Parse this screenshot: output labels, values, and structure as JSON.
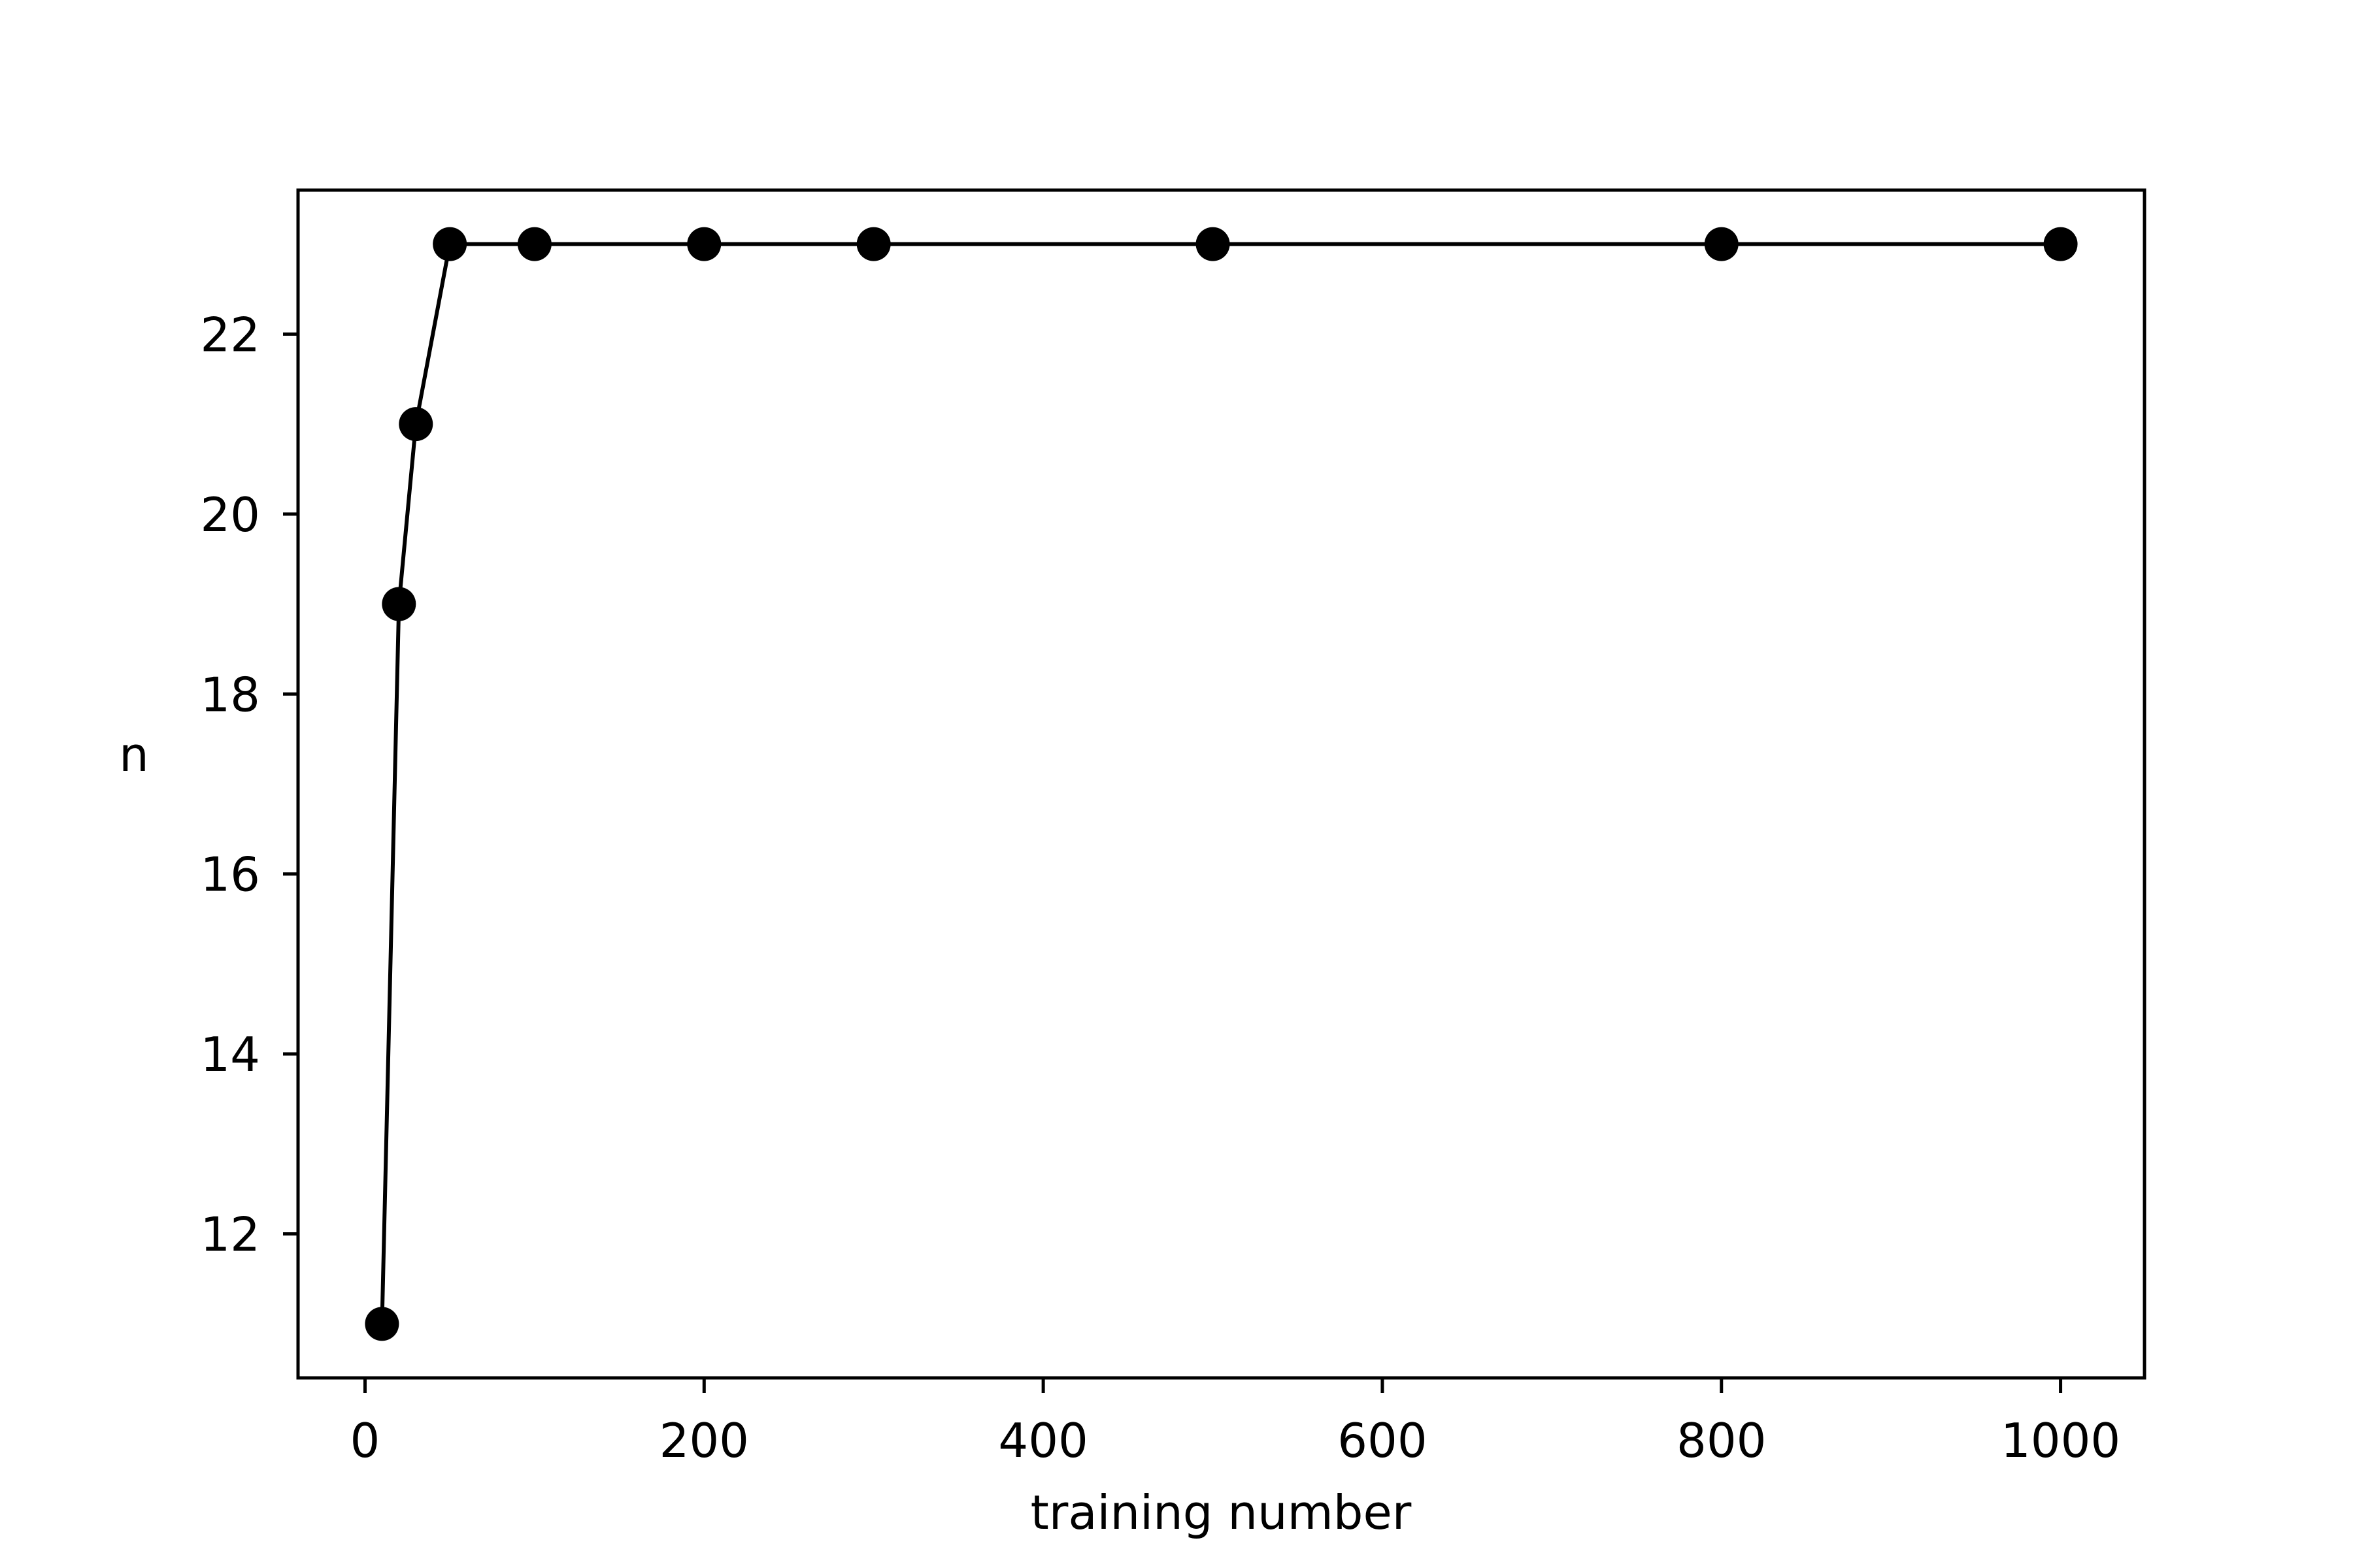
{
  "chart_data": {
    "type": "line",
    "x_label": "training number",
    "y_label": "n",
    "x": [
      10,
      20,
      30,
      50,
      100,
      200,
      300,
      500,
      800,
      1000
    ],
    "series": [
      {
        "name": "n",
        "color": "#000000",
        "values": [
          11,
          19,
          21,
          23,
          23,
          23,
          23,
          23,
          23,
          23
        ]
      }
    ],
    "xlim": [
      -39.5,
      1049.5
    ],
    "xticks": [
      0,
      200,
      400,
      600,
      800,
      1000
    ],
    "ylim": [
      10.4,
      23.6
    ],
    "yticks": [
      12,
      14,
      16,
      18,
      20,
      22
    ],
    "grid": false,
    "markers": true
  }
}
